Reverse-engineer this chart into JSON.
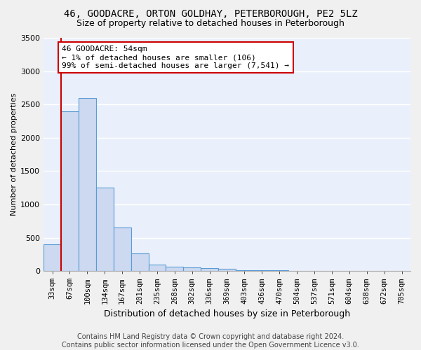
{
  "title_line1": "46, GOODACRE, ORTON GOLDHAY, PETERBOROUGH, PE2 5LZ",
  "title_line2": "Size of property relative to detached houses in Peterborough",
  "xlabel": "Distribution of detached houses by size in Peterborough",
  "ylabel": "Number of detached properties",
  "bar_labels": [
    "33sqm",
    "67sqm",
    "100sqm",
    "134sqm",
    "167sqm",
    "201sqm",
    "235sqm",
    "268sqm",
    "302sqm",
    "336sqm",
    "369sqm",
    "403sqm",
    "436sqm",
    "470sqm",
    "504sqm",
    "537sqm",
    "571sqm",
    "604sqm",
    "638sqm",
    "672sqm",
    "705sqm"
  ],
  "bar_values": [
    400,
    2400,
    2600,
    1250,
    650,
    260,
    100,
    60,
    50,
    40,
    30,
    15,
    10,
    8,
    5,
    4,
    3,
    2,
    2,
    1,
    1
  ],
  "bar_color": "#ccd9f0",
  "bar_edge_color": "#5b9bd5",
  "ylim": [
    0,
    3500
  ],
  "yticks": [
    0,
    500,
    1000,
    1500,
    2000,
    2500,
    3000,
    3500
  ],
  "annotation_text": "46 GOODACRE: 54sqm\n← 1% of detached houses are smaller (106)\n99% of semi-detached houses are larger (7,541) →",
  "annotation_box_color": "#ffffff",
  "annotation_box_edge": "#cc0000",
  "vline_color": "#cc0000",
  "footer_text": "Contains HM Land Registry data © Crown copyright and database right 2024.\nContains public sector information licensed under the Open Government Licence v3.0.",
  "fig_bg_color": "#f0f0f0",
  "ax_bg_color": "#eaf0fb",
  "grid_color": "#ffffff",
  "title_fontsize": 10,
  "subtitle_fontsize": 9,
  "ylabel_fontsize": 8,
  "xlabel_fontsize": 9,
  "tick_fontsize": 7.5,
  "annotation_fontsize": 8,
  "footer_fontsize": 7
}
